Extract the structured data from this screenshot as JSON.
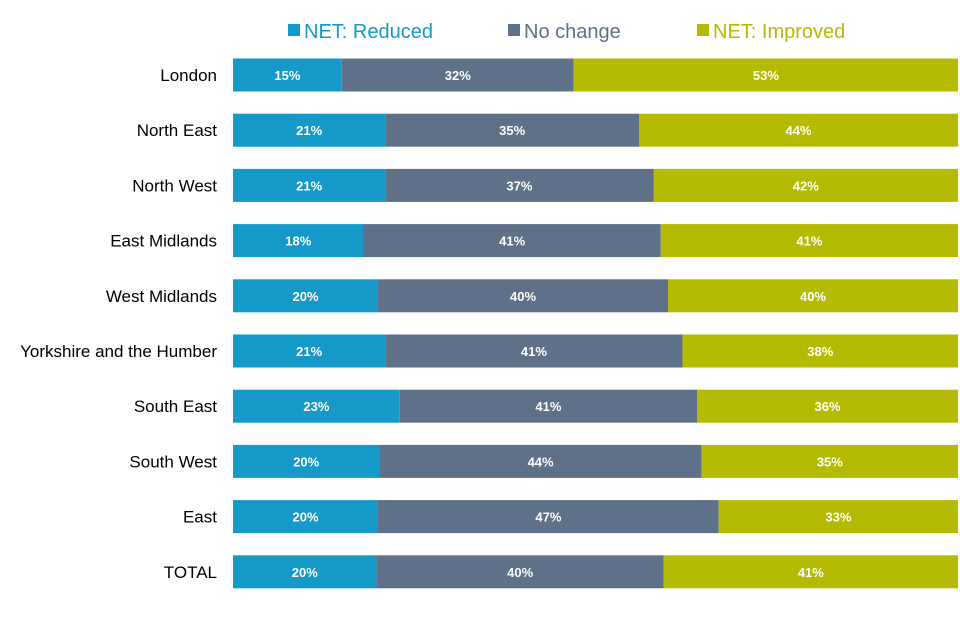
{
  "chart_data": {
    "type": "bar",
    "orientation": "horizontal",
    "stacked": true,
    "percent_stacked": true,
    "title": "",
    "xlabel": "",
    "ylabel": "",
    "legend_position": "top",
    "categories": [
      "London",
      "North East",
      "North West",
      "East Midlands",
      "West Midlands",
      "Yorkshire and the Humber",
      "South East",
      "South West",
      "East",
      "TOTAL"
    ],
    "series": [
      {
        "name": "NET: Reduced",
        "color": "#1499c8",
        "values": [
          15,
          21,
          21,
          18,
          20,
          21,
          23,
          20,
          20,
          20
        ],
        "labels": [
          "15%",
          "21%",
          "21%",
          "18%",
          "20%",
          "21%",
          "23%",
          "20%",
          "20%",
          "20%"
        ]
      },
      {
        "name": "No change",
        "color": "#5f7189",
        "values": [
          32,
          35,
          37,
          41,
          40,
          41,
          41,
          44,
          47,
          40
        ],
        "labels": [
          "32%",
          "35%",
          "37%",
          "41%",
          "40%",
          "41%",
          "41%",
          "44%",
          "47%",
          "40%"
        ]
      },
      {
        "name": "NET: Improved",
        "color": "#b5bb00",
        "values": [
          53,
          44,
          42,
          41,
          40,
          38,
          36,
          35,
          33,
          41
        ],
        "labels": [
          "53%",
          "44%",
          "42%",
          "41%",
          "40%",
          "38%",
          "36%",
          "35%",
          "33%",
          "41%"
        ]
      }
    ]
  }
}
